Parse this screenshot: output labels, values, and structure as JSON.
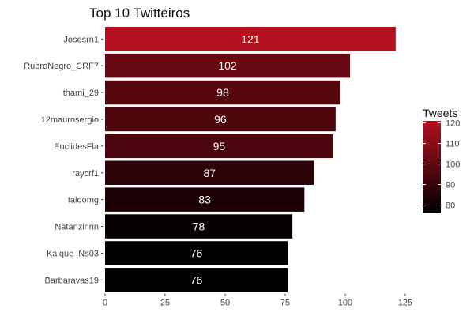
{
  "chart_data": {
    "type": "bar",
    "orientation": "horizontal",
    "title": "Top 10 Twitteiros",
    "xlabel": "",
    "ylabel": "",
    "categories": [
      "Josesrn1",
      "RubroNegro_CRF7",
      "thami_29",
      "12maurosergio",
      "EuclidesFla",
      "raycrf1",
      "taldomg",
      "Natanzinnn",
      "Kaique_Ns03",
      "Barbaravas19"
    ],
    "values": [
      121,
      102,
      98,
      96,
      95,
      87,
      83,
      78,
      76,
      76
    ],
    "xlim": [
      0,
      125
    ],
    "xticks": [
      0,
      25,
      50,
      75,
      100,
      125
    ],
    "grid": false,
    "legend": {
      "title": "Tweets",
      "position": "right",
      "ticks": [
        80,
        90,
        100,
        110,
        120
      ],
      "range": [
        76,
        121
      ],
      "color_low": "#000000",
      "color_high": "#b2101f"
    }
  }
}
